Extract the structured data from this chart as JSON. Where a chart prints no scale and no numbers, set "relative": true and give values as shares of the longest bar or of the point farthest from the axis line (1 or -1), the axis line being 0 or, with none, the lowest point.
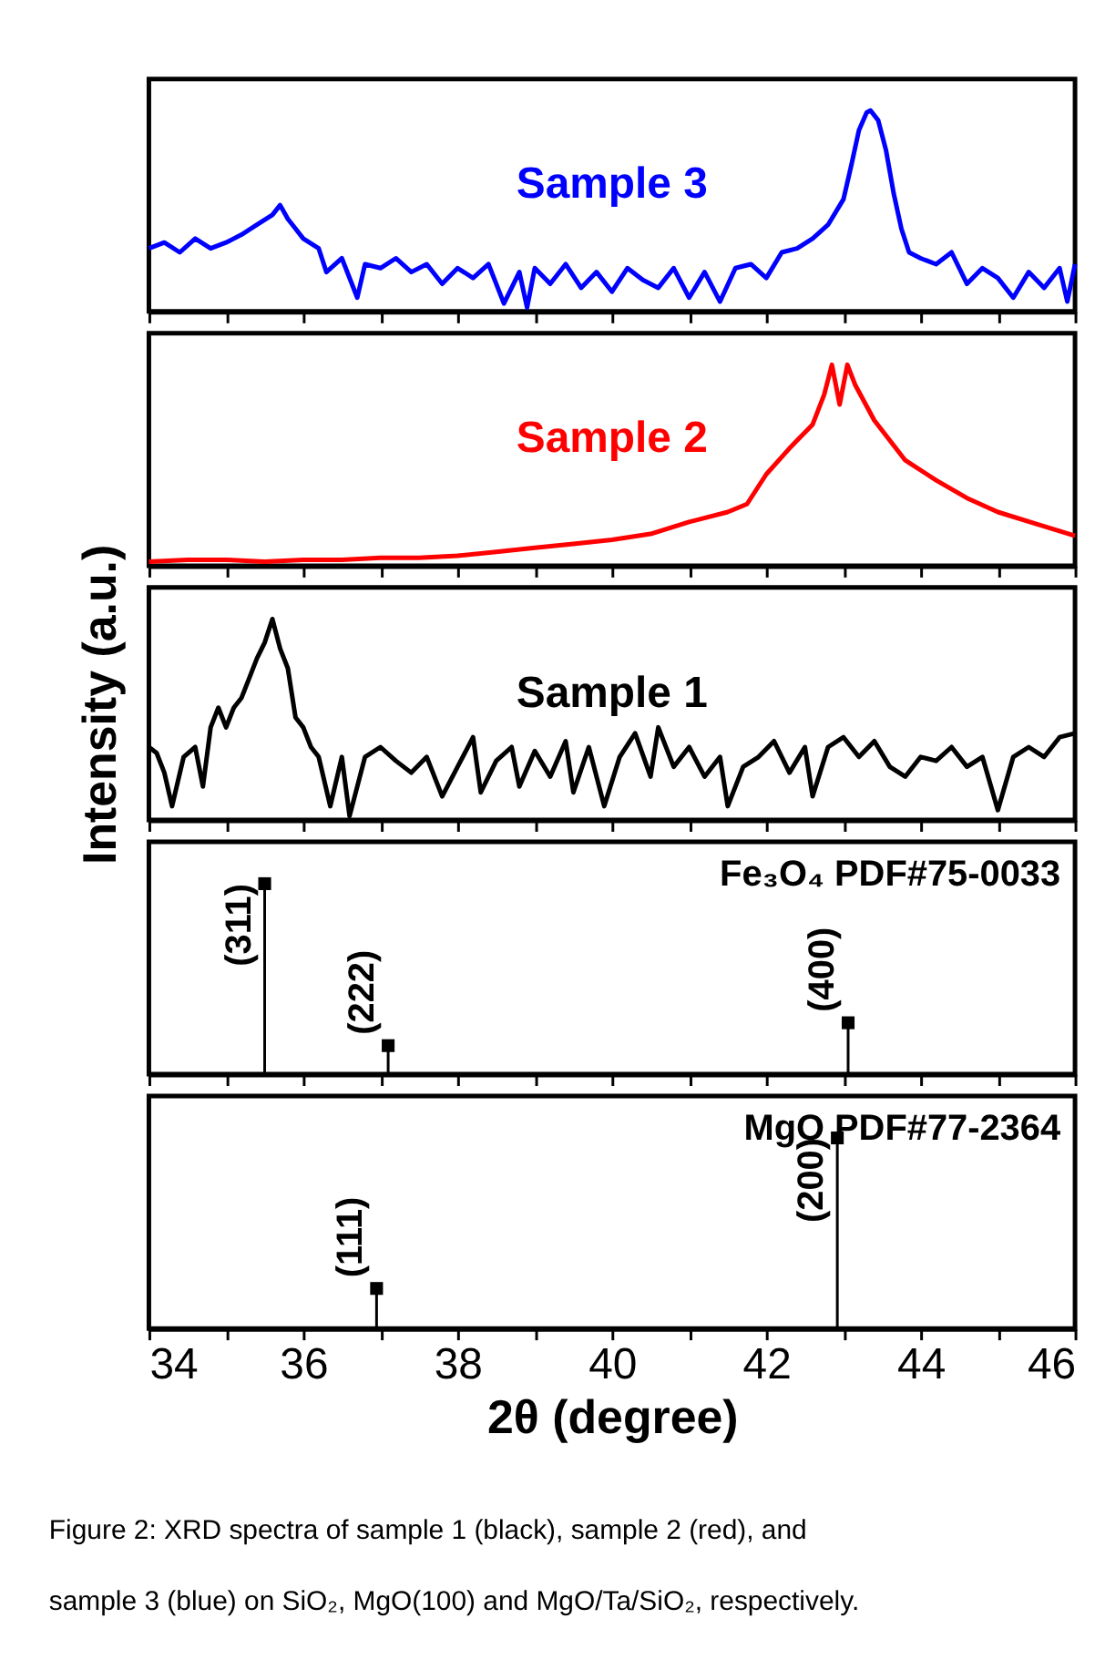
{
  "chart_data": [
    {
      "type": "line",
      "relative": true,
      "xlim": [
        34,
        46
      ],
      "xticks": [
        34,
        {
          "value": 35,
          "label": null
        },
        36,
        {
          "value": 37,
          "label": null
        },
        38,
        {
          "value": 39,
          "label": null
        },
        40,
        {
          "value": 41,
          "label": null
        },
        42,
        {
          "value": 43,
          "label": null
        },
        44,
        {
          "value": 45,
          "label": null
        },
        46
      ],
      "tick_labels": false,
      "grid": false,
      "series": [
        {
          "name": "Sample 3",
          "color": "#0000ff",
          "line_style": "solid",
          "x": [
            34.0,
            34.2,
            34.4,
            34.6,
            34.8,
            35.0,
            35.2,
            35.4,
            35.6,
            35.7,
            35.8,
            36.0,
            36.2,
            36.3,
            36.5,
            36.7,
            36.8,
            37.0,
            37.2,
            37.4,
            37.6,
            37.8,
            38.0,
            38.2,
            38.4,
            38.6,
            38.8,
            38.9,
            39.0,
            39.2,
            39.4,
            39.6,
            39.8,
            40.0,
            40.2,
            40.4,
            40.6,
            40.8,
            41.0,
            41.2,
            41.4,
            41.6,
            41.8,
            42.0,
            42.2,
            42.4,
            42.6,
            42.8,
            43.0,
            43.1,
            43.2,
            43.3,
            43.35,
            43.45,
            43.55,
            43.65,
            43.75,
            43.85,
            44.0,
            44.2,
            44.4,
            44.6,
            44.8,
            45.0,
            45.2,
            45.4,
            45.6,
            45.8,
            45.9,
            46.0
          ],
          "values": [
            0.3,
            0.33,
            0.28,
            0.35,
            0.3,
            0.33,
            0.37,
            0.42,
            0.47,
            0.52,
            0.45,
            0.35,
            0.3,
            0.18,
            0.25,
            0.05,
            0.22,
            0.2,
            0.25,
            0.18,
            0.22,
            0.12,
            0.2,
            0.15,
            0.22,
            0.02,
            0.18,
            0.0,
            0.2,
            0.12,
            0.22,
            0.1,
            0.18,
            0.08,
            0.2,
            0.14,
            0.1,
            0.2,
            0.05,
            0.18,
            0.03,
            0.2,
            0.22,
            0.15,
            0.28,
            0.3,
            0.35,
            0.42,
            0.55,
            0.72,
            0.9,
            0.99,
            1.0,
            0.95,
            0.8,
            0.58,
            0.4,
            0.28,
            0.25,
            0.22,
            0.28,
            0.12,
            0.2,
            0.15,
            0.05,
            0.18,
            0.1,
            0.2,
            0.03,
            0.22
          ]
        }
      ]
    },
    {
      "type": "line",
      "relative": true,
      "xlim": [
        34,
        46
      ],
      "xticks": [
        34,
        {
          "value": 35,
          "label": null
        },
        36,
        {
          "value": 37,
          "label": null
        },
        38,
        {
          "value": 39,
          "label": null
        },
        40,
        {
          "value": 41,
          "label": null
        },
        42,
        {
          "value": 43,
          "label": null
        },
        44,
        {
          "value": 45,
          "label": null
        },
        46
      ],
      "tick_labels": false,
      "grid": false,
      "series": [
        {
          "name": "Sample 2",
          "color": "#ff0000",
          "line_style": "solid",
          "x": [
            34.0,
            34.5,
            35.0,
            35.5,
            36.0,
            36.5,
            37.0,
            37.5,
            38.0,
            38.5,
            39.0,
            39.5,
            40.0,
            40.5,
            41.0,
            41.5,
            41.75,
            42.0,
            42.3,
            42.6,
            42.75,
            42.85,
            42.95,
            43.05,
            43.15,
            43.4,
            43.8,
            44.2,
            44.6,
            45.0,
            45.5,
            46.0
          ],
          "values": [
            0.01,
            0.02,
            0.02,
            0.01,
            0.02,
            0.02,
            0.03,
            0.03,
            0.04,
            0.06,
            0.08,
            0.1,
            0.12,
            0.15,
            0.21,
            0.26,
            0.3,
            0.45,
            0.58,
            0.7,
            0.85,
            1.0,
            0.8,
            1.0,
            0.9,
            0.72,
            0.52,
            0.42,
            0.33,
            0.26,
            0.2,
            0.14
          ]
        }
      ]
    },
    {
      "type": "line",
      "relative": true,
      "ylabel": "Intensity (a.u.)",
      "xlim": [
        34,
        46
      ],
      "xticks": [
        34,
        {
          "value": 35,
          "label": null
        },
        36,
        {
          "value": 37,
          "label": null
        },
        38,
        {
          "value": 39,
          "label": null
        },
        40,
        {
          "value": 41,
          "label": null
        },
        42,
        {
          "value": 43,
          "label": null
        },
        44,
        {
          "value": 45,
          "label": null
        },
        46
      ],
      "tick_labels": false,
      "grid": false,
      "series": [
        {
          "name": "Sample 1",
          "color": "#000000",
          "line_style": "solid",
          "x": [
            34.0,
            34.1,
            34.2,
            34.3,
            34.45,
            34.6,
            34.7,
            34.8,
            34.9,
            35.0,
            35.1,
            35.2,
            35.3,
            35.4,
            35.5,
            35.6,
            35.7,
            35.8,
            35.9,
            36.0,
            36.1,
            36.2,
            36.35,
            36.5,
            36.6,
            36.8,
            37.0,
            37.2,
            37.4,
            37.6,
            37.8,
            38.0,
            38.2,
            38.3,
            38.5,
            38.7,
            38.8,
            39.0,
            39.2,
            39.4,
            39.5,
            39.7,
            39.9,
            40.1,
            40.3,
            40.5,
            40.6,
            40.8,
            41.0,
            41.2,
            41.4,
            41.5,
            41.7,
            41.9,
            42.1,
            42.3,
            42.5,
            42.6,
            42.8,
            43.0,
            43.2,
            43.4,
            43.6,
            43.8,
            44.0,
            44.2,
            44.4,
            44.6,
            44.8,
            45.0,
            45.2,
            45.4,
            45.6,
            45.8,
            46.0
          ],
          "values": [
            0.35,
            0.32,
            0.22,
            0.05,
            0.3,
            0.35,
            0.15,
            0.45,
            0.55,
            0.45,
            0.55,
            0.6,
            0.7,
            0.8,
            0.88,
            1.0,
            0.85,
            0.75,
            0.5,
            0.45,
            0.35,
            0.3,
            0.05,
            0.3,
            0.0,
            0.3,
            0.35,
            0.28,
            0.22,
            0.3,
            0.1,
            0.25,
            0.4,
            0.12,
            0.28,
            0.35,
            0.15,
            0.33,
            0.2,
            0.38,
            0.12,
            0.35,
            0.05,
            0.3,
            0.42,
            0.2,
            0.45,
            0.25,
            0.35,
            0.2,
            0.3,
            0.05,
            0.25,
            0.3,
            0.38,
            0.22,
            0.35,
            0.1,
            0.35,
            0.4,
            0.3,
            0.38,
            0.25,
            0.2,
            0.3,
            0.28,
            0.35,
            0.25,
            0.3,
            0.03,
            0.3,
            0.35,
            0.3,
            0.4,
            0.42
          ]
        }
      ]
    },
    {
      "type": "lollipop",
      "relative": true,
      "xlim": [
        34,
        46
      ],
      "xticks": [
        34,
        {
          "value": 35,
          "label": null
        },
        36,
        {
          "value": 37,
          "label": null
        },
        38,
        {
          "value": 39,
          "label": null
        },
        40,
        {
          "value": 41,
          "label": null
        },
        42,
        {
          "value": 43,
          "label": null
        },
        44,
        {
          "value": 45,
          "label": null
        },
        46
      ],
      "tick_labels": false,
      "grid": false,
      "marker": "square",
      "x": [
        35.5,
        37.1,
        43.06
      ],
      "values": [
        1.0,
        0.15,
        0.27
      ],
      "color": "#000000",
      "annotations": [
        "Fe₃O₄ PDF#75-0033",
        {
          "text": "(311)",
          "x": 35.5,
          "y": 1.0
        },
        {
          "text": "(222)",
          "x": 37.1,
          "y": 0.15
        },
        {
          "text": "(400)",
          "x": 43.06,
          "y": 0.27
        }
      ]
    },
    {
      "type": "lollipop",
      "relative": true,
      "xlabel": "2θ (degree)",
      "xlim": [
        34,
        46
      ],
      "xticks": [
        34,
        {
          "value": 35,
          "label": null
        },
        36,
        {
          "value": 37,
          "label": null
        },
        38,
        {
          "value": 39,
          "label": null
        },
        40,
        {
          "value": 41,
          "label": null
        },
        42,
        {
          "value": 43,
          "label": null
        },
        44,
        {
          "value": 45,
          "label": null
        },
        46
      ],
      "tick_labels": "x",
      "grid": false,
      "marker": "square",
      "x": [
        36.95,
        42.92
      ],
      "values": [
        0.21,
        1.0
      ],
      "color": "#000000",
      "annotations": [
        "MgO PDF#77-2364",
        {
          "text": "(111)",
          "x": 36.95,
          "y": 0.21
        },
        {
          "text": "(200)",
          "x": 42.92,
          "y": 1.0
        }
      ]
    },
    {
      "type": "other",
      "annotations": [
        "Figure 2: XRD spectra of sample 1 (black), sample 2 (red), and sample 3 (blue) on SiO₂, MgO(100) and MgO/Ta/SiO₂, respectively."
      ]
    }
  ]
}
